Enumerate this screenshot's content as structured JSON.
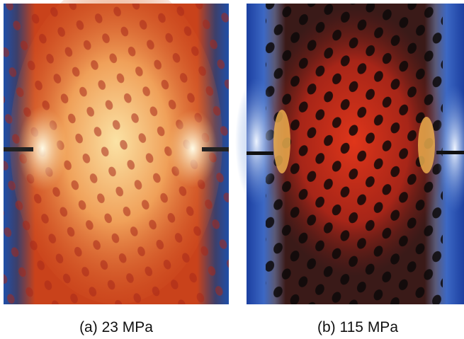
{
  "panels": [
    {
      "caption": "(a) 23 MPa"
    },
    {
      "caption": "(b) 115 MPa"
    }
  ]
}
